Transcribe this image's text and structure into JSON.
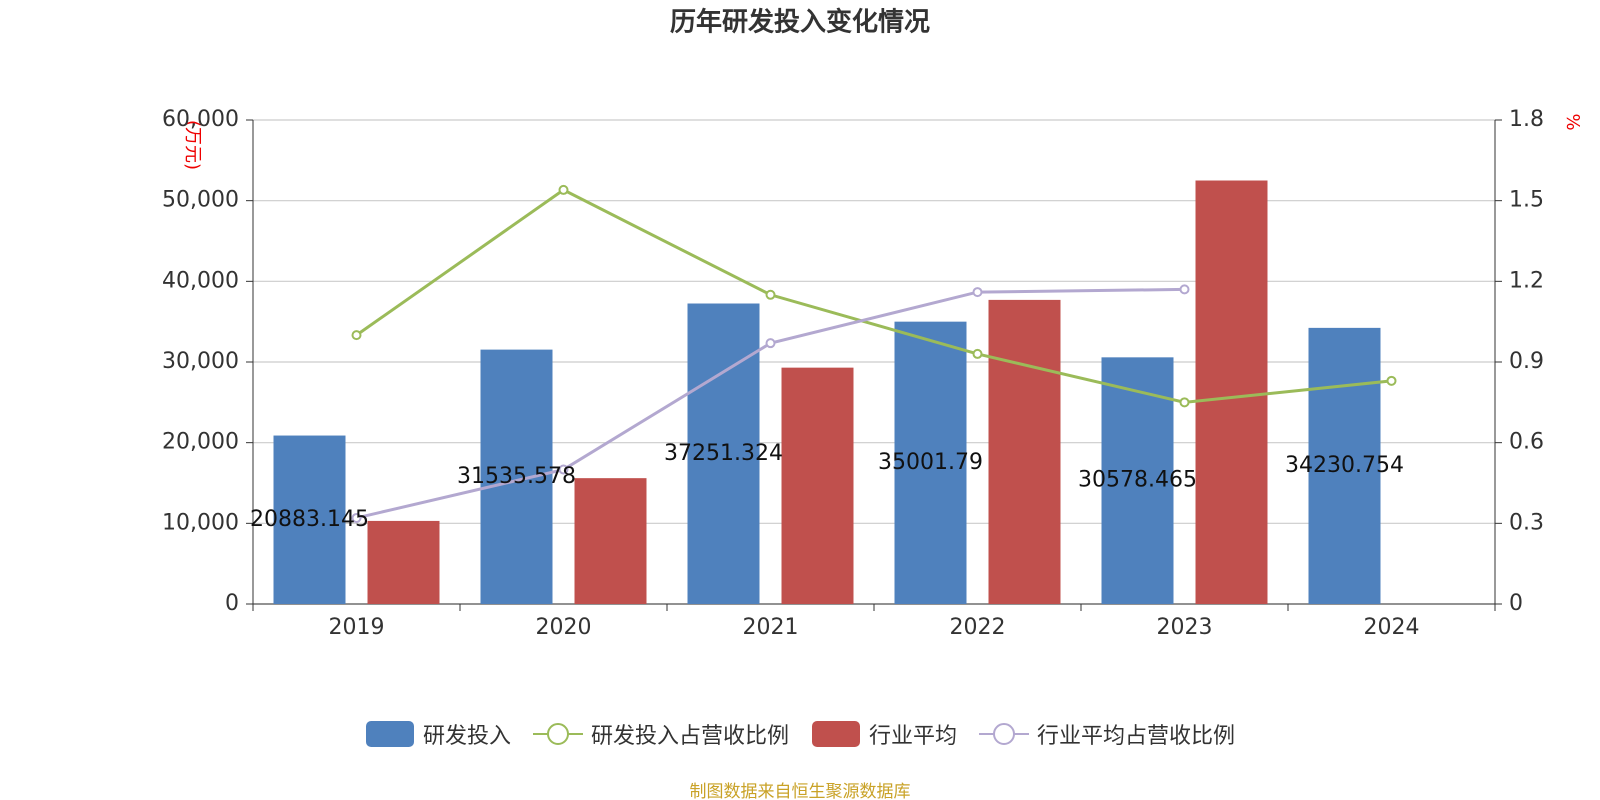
{
  "chart_data": {
    "type": "bar",
    "title": "历年研发投入变化情况",
    "y_label": "(万元)",
    "y2_label": "%",
    "source": "制图数据来自恒生聚源数据库",
    "categories": [
      "2019",
      "2020",
      "2021",
      "2022",
      "2023",
      "2024"
    ],
    "series": [
      {
        "name": "研发投入",
        "type": "bar",
        "color": "#4f81bd",
        "values": [
          20883.145,
          31535.578,
          37251.324,
          35001.79,
          30578.465,
          34230.754
        ],
        "show_labels": true
      },
      {
        "name": "研发投入占营收比例",
        "type": "line",
        "axis": "y2",
        "color": "#9bbb59",
        "values": [
          1.0,
          1.54,
          1.15,
          0.93,
          0.75,
          0.83
        ]
      },
      {
        "name": "行业平均",
        "type": "bar",
        "color": "#c0504d",
        "values": [
          10300,
          15600,
          29300,
          37700,
          52500,
          null
        ]
      },
      {
        "name": "行业平均占营收比例",
        "type": "line",
        "axis": "y2",
        "color": "#b3a8d0",
        "values": [
          0.32,
          0.5,
          0.97,
          1.16,
          1.17,
          null
        ]
      }
    ],
    "ylim": [
      0,
      60000
    ],
    "yticks": [
      0,
      {
        "value": 10000,
        "label": "10,000"
      },
      {
        "value": 20000,
        "label": "20,000"
      },
      {
        "value": 30000,
        "label": "30,000"
      },
      {
        "value": 40000,
        "label": "40,000"
      },
      {
        "value": 50000,
        "label": "50,000"
      },
      {
        "value": 60000,
        "label": "60,000"
      }
    ],
    "y2lim": [
      0,
      1.8
    ],
    "y2ticks": [
      0,
      0.3,
      0.6,
      0.9,
      1.2,
      1.5,
      1.8
    ],
    "grid": true
  }
}
